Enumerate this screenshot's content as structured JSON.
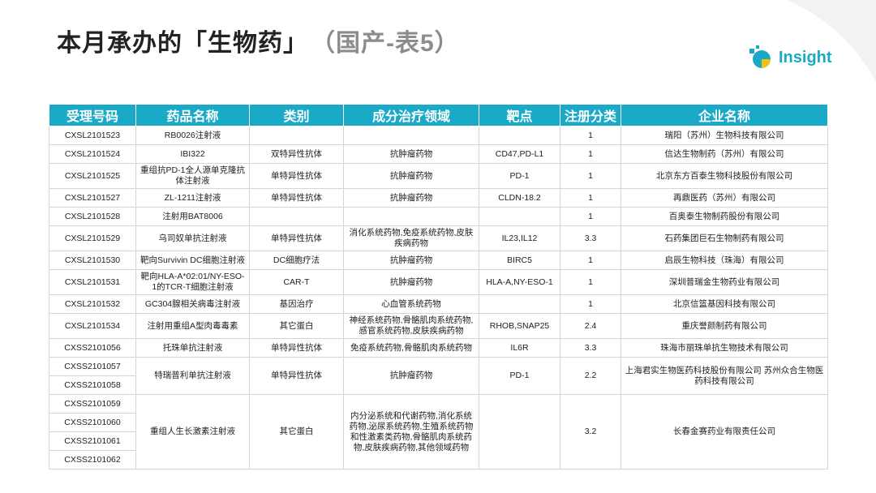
{
  "header": {
    "title": "本月承办的「生物药」",
    "subtitle": "（国产-表5）"
  },
  "logo": {
    "text": "Insight"
  },
  "table": {
    "headers": [
      "受理号码",
      "药品名称",
      "类别",
      "成分治疗领域",
      "靶点",
      "注册分类",
      "企业名称"
    ],
    "rows": [
      {
        "ids": [
          "CXSL2101523"
        ],
        "name": "RB0026注射液",
        "category": null,
        "area": null,
        "target": null,
        "class": "1",
        "company": "瑞阳（苏州）生物科技有限公司"
      },
      {
        "ids": [
          "CXSL2101524"
        ],
        "name": "IBI322",
        "category": "双特异性抗体",
        "area": "抗肿瘤药物",
        "target": "CD47,PD-L1",
        "class": "1",
        "company": "信达生物制药（苏州）有限公司"
      },
      {
        "ids": [
          "CXSL2101525"
        ],
        "name": "重组抗PD-1全人源单克隆抗体注射液",
        "category": "单特异性抗体",
        "area": "抗肿瘤药物",
        "target": "PD-1",
        "class": "1",
        "company": "北京东方百泰生物科技股份有限公司"
      },
      {
        "ids": [
          "CXSL2101527"
        ],
        "name": "ZL-1211注射液",
        "category": "单特异性抗体",
        "area": "抗肿瘤药物",
        "target": "CLDN-18.2",
        "class": "1",
        "company": "再鼎医药（苏州）有限公司"
      },
      {
        "ids": [
          "CXSL2101528"
        ],
        "name": "注射用BAT8006",
        "category": null,
        "area": null,
        "target": null,
        "class": "1",
        "company": "百奥泰生物制药股份有限公司"
      },
      {
        "ids": [
          "CXSL2101529"
        ],
        "name": "乌司奴单抗注射液",
        "category": "单特异性抗体",
        "area": "消化系统药物,免疫系统药物,皮肤疾病药物",
        "target": "IL23,IL12",
        "class": "3.3",
        "company": "石药集团巨石生物制药有限公司"
      },
      {
        "ids": [
          "CXSL2101530"
        ],
        "name": "靶向Survivin DC细胞注射液",
        "category": "DC细胞疗法",
        "area": "抗肿瘤药物",
        "target": "BIRC5",
        "class": "1",
        "company": "启辰生物科技（珠海）有限公司"
      },
      {
        "ids": [
          "CXSL2101531"
        ],
        "name": "靶向HLA-A*02:01/NY-ESO-1的TCR-T细胞注射液",
        "category": "CAR-T",
        "area": "抗肿瘤药物",
        "target": "HLA-A,NY-ESO-1",
        "class": "1",
        "company": "深圳普瑞金生物药业有限公司"
      },
      {
        "ids": [
          "CXSL2101532"
        ],
        "name": "GC304腺相关病毒注射液",
        "category": "基因治疗",
        "area": "心血管系统药物",
        "target": null,
        "class": "1",
        "company": "北京信篮基因科技有限公司"
      },
      {
        "ids": [
          "CXSL2101534"
        ],
        "name": "注射用重组A型肉毒毒素",
        "category": "其它蛋白",
        "area": "神经系统药物,骨骼肌肉系统药物,感官系统药物,皮肤疾病药物",
        "target": "RHOB,SNAP25",
        "class": "2.4",
        "company": "重庆誉颜制药有限公司"
      },
      {
        "ids": [
          "CXSS2101056"
        ],
        "name": "托珠单抗注射液",
        "category": "单特异性抗体",
        "area": "免疫系统药物,骨骼肌肉系统药物",
        "target": "IL6R",
        "class": "3.3",
        "company": "珠海市丽珠单抗生物技术有限公司"
      },
      {
        "ids": [
          "CXSS2101057",
          "CXSS2101058"
        ],
        "name": "特瑞普利单抗注射液",
        "category": "单特异性抗体",
        "area": "抗肿瘤药物",
        "target": "PD-1",
        "class": "2.2",
        "company": "上海君实生物医药科技股份有限公司 苏州众合生物医药科技有限公司"
      },
      {
        "ids": [
          "CXSS2101059",
          "CXSS2101060",
          "CXSS2101061",
          "CXSS2101062"
        ],
        "name": "重组人生长激素注射液",
        "category": "其它蛋白",
        "area": "内分泌系统和代谢药物,消化系统药物,泌尿系统药物,生殖系统药物和性激素类药物,骨骼肌肉系统药物,皮肤疾病药物,其他领域药物",
        "target": null,
        "class": "3.2",
        "company": "长春金赛药业有限责任公司"
      }
    ]
  }
}
